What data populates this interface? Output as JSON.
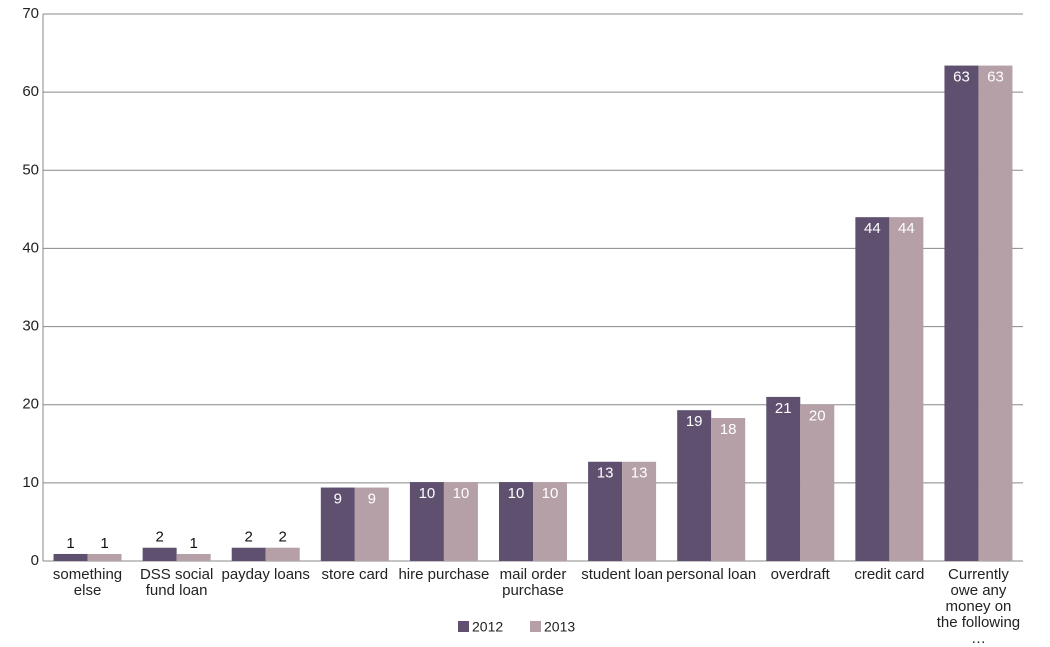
{
  "chart_data": {
    "type": "bar",
    "categories": [
      "something else",
      "DSS social fund loan",
      "payday loans",
      "store card",
      "hire purchase",
      "mail order purchase",
      "student loan",
      "personal loan",
      "overdraft",
      "credit card",
      "Currently owe any money on the following …"
    ],
    "series": [
      {
        "name": "2012",
        "color": "#5f5070",
        "values": [
          0.9,
          1.7,
          1.7,
          9.4,
          10.1,
          10.1,
          12.7,
          19.3,
          21.0,
          44.0,
          63.4
        ],
        "value_labels": [
          "1",
          "2",
          "2",
          "9",
          "10",
          "10",
          "13",
          "19",
          "21",
          "44",
          "63"
        ]
      },
      {
        "name": "2013",
        "color": "#b5a0a8",
        "values": [
          0.9,
          0.9,
          1.7,
          9.4,
          10.1,
          10.1,
          12.7,
          18.3,
          20.0,
          44.0,
          63.4
        ],
        "value_labels": [
          "1",
          "1",
          "2",
          "9",
          "10",
          "10",
          "13",
          "18",
          "20",
          "44",
          "63"
        ]
      }
    ],
    "ylim": [
      0,
      70
    ],
    "yticks": [
      0,
      10,
      20,
      30,
      40,
      50,
      60,
      70
    ],
    "grid": true,
    "legend": "bottom"
  }
}
